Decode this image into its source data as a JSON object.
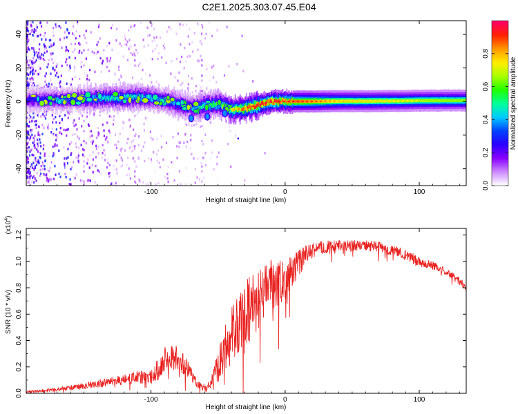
{
  "title": "C2E1.2025.303.07.45.E04",
  "chart_data": [
    {
      "type": "heatmap",
      "xlabel": "Height of straight line (km)",
      "ylabel": "Frequency (Hz)",
      "xlim": [
        -193,
        135
      ],
      "ylim": [
        -50,
        48
      ],
      "xticks": [
        -100,
        0,
        100
      ],
      "xtick_labels": [
        "-100",
        "0",
        "100"
      ],
      "yticks": [
        -40,
        -20,
        0,
        20,
        40
      ],
      "ytick_labels": [
        "-40",
        "-20",
        "0",
        "20",
        "40"
      ],
      "ridge": {
        "x": [
          -193,
          -170,
          -150,
          -130,
          -110,
          -100,
          -90,
          -80,
          -70,
          -60,
          -50,
          -40,
          -30,
          -20,
          -10,
          0,
          10,
          20,
          40,
          60,
          80,
          100,
          120,
          135
        ],
        "freq": [
          1,
          1,
          1.5,
          2,
          2.5,
          2,
          0.5,
          -1.5,
          -4,
          -2.5,
          -1.5,
          -5,
          -4,
          -2,
          0,
          0,
          0,
          0,
          0.2,
          0.2,
          0.3,
          0.5,
          0.6,
          0.6
        ],
        "amplitude": [
          0.25,
          0.3,
          0.38,
          0.45,
          0.45,
          0.4,
          0.4,
          0.42,
          0.4,
          0.5,
          0.55,
          0.7,
          0.82,
          0.88,
          0.9,
          0.85,
          0.85,
          0.82,
          0.72,
          0.7,
          0.68,
          0.66,
          0.65,
          0.64
        ]
      },
      "colorbar": {
        "label": "Normalized spectral amplitude",
        "range": [
          0,
          1
        ],
        "ticks": [
          0.0,
          0.2,
          0.4,
          0.6,
          0.8
        ],
        "tick_labels": [
          "0.0",
          "0.2",
          "0.4",
          "0.6",
          "0.8"
        ],
        "colors": [
          "#ffffff",
          "#cc88ff",
          "#8800ff",
          "#2a00ff",
          "#0044ff",
          "#00ccff",
          "#00ff99",
          "#22ff00",
          "#aaff00",
          "#ffee00",
          "#ff9900",
          "#ff2200",
          "#ff0066"
        ]
      }
    },
    {
      "type": "line",
      "xlabel": "Height of straight line (km)",
      "ylabel": "SNR (10 * v/v)",
      "y_multiplier": "(x10",
      "y_multiplier_exp": "4",
      "y_multiplier_close": ")",
      "xlim": [
        -193,
        135
      ],
      "ylim": [
        0,
        1.25
      ],
      "xticks": [
        -100,
        0,
        100
      ],
      "xtick_labels": [
        "-100",
        "0",
        "100"
      ],
      "yticks": [
        0.0,
        0.2,
        0.4,
        0.6,
        0.8,
        1.0,
        1.2
      ],
      "ytick_labels": [
        "0.0",
        "0.2",
        "0.4",
        "0.6",
        "0.8",
        "1.0",
        "1.2"
      ],
      "series": [
        {
          "name": "SNR",
          "color": "#e8201e",
          "x": [
            -193,
            -180,
            -160,
            -140,
            -120,
            -110,
            -100,
            -95,
            -90,
            -85,
            -80,
            -75,
            -70,
            -65,
            -60,
            -55,
            -50,
            -45,
            -40,
            -35,
            -30,
            -25,
            -20,
            -15,
            -10,
            -5,
            0,
            5,
            10,
            15,
            20,
            25,
            30,
            40,
            50,
            60,
            70,
            80,
            90,
            100,
            110,
            120,
            130,
            135
          ],
          "y": [
            0.01,
            0.02,
            0.04,
            0.07,
            0.1,
            0.12,
            0.12,
            0.18,
            0.25,
            0.28,
            0.26,
            0.22,
            0.14,
            0.06,
            0.04,
            0.08,
            0.2,
            0.36,
            0.45,
            0.5,
            0.58,
            0.65,
            0.7,
            0.78,
            0.82,
            0.84,
            0.86,
            0.92,
            0.98,
            1.04,
            1.08,
            1.1,
            1.11,
            1.12,
            1.12,
            1.12,
            1.11,
            1.08,
            1.05,
            1.0,
            0.97,
            0.92,
            0.85,
            0.81
          ],
          "noise": [
            0.01,
            0.01,
            0.02,
            0.03,
            0.04,
            0.05,
            0.05,
            0.08,
            0.1,
            0.1,
            0.1,
            0.08,
            0.05,
            0.03,
            0.03,
            0.06,
            0.12,
            0.18,
            0.22,
            0.25,
            0.26,
            0.26,
            0.24,
            0.22,
            0.2,
            0.17,
            0.14,
            0.12,
            0.1,
            0.08,
            0.06,
            0.05,
            0.05,
            0.04,
            0.04,
            0.04,
            0.04,
            0.04,
            0.04,
            0.04,
            0.03,
            0.03,
            0.03,
            0.03
          ]
        }
      ]
    }
  ]
}
